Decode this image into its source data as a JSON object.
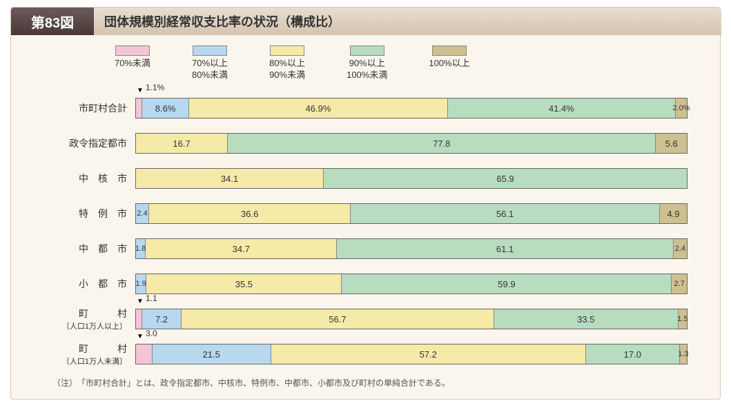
{
  "figure_number": "第83図",
  "title": "団体規模別経常収支比率の状況（構成比）",
  "note": "（注）　「市町村合計」とは、政令指定都市、中核市、特例市、中都市、小都市及び町村の単純合計である。",
  "legend": [
    {
      "label": "70%未満",
      "color": "#f5c5d5"
    },
    {
      "label": "70%以上\n80%未満",
      "color": "#b8d8f0"
    },
    {
      "label": "80%以上\n90%未満",
      "color": "#f5eaa8"
    },
    {
      "label": "90%以上\n100%未満",
      "color": "#b8dcc0"
    },
    {
      "label": "100%以上",
      "color": "#cfc090"
    }
  ],
  "colors": {
    "background": "#faf5ed",
    "border": "#d4c8b0",
    "badge_gradient_top": "#6b5a5a",
    "badge_gradient_bottom": "#4a3838",
    "title_gradient_top": "#e8ddd0",
    "title_gradient_bottom": "#d4c4b0"
  },
  "rows": [
    {
      "label": "市町村合計",
      "sublabel": "",
      "callout": "1.1%",
      "segments": [
        {
          "value": 1.1,
          "text": "",
          "color": "#f5c5d5"
        },
        {
          "value": 8.6,
          "text": "8.6%",
          "color": "#b8d8f0"
        },
        {
          "value": 46.9,
          "text": "46.9%",
          "color": "#f5eaa8"
        },
        {
          "value": 41.4,
          "text": "41.4%",
          "color": "#b8dcc0"
        },
        {
          "value": 2.0,
          "text": "2.0%",
          "color": "#cfc090"
        }
      ]
    },
    {
      "label": "政令指定都市",
      "sublabel": "",
      "segments": [
        {
          "value": 16.7,
          "text": "16.7",
          "color": "#f5eaa8"
        },
        {
          "value": 77.8,
          "text": "77.8",
          "color": "#b8dcc0"
        },
        {
          "value": 5.6,
          "text": "5.6",
          "color": "#cfc090"
        }
      ]
    },
    {
      "label": "中　核　市",
      "sublabel": "",
      "segments": [
        {
          "value": 34.1,
          "text": "34.1",
          "color": "#f5eaa8"
        },
        {
          "value": 65.9,
          "text": "65.9",
          "color": "#b8dcc0"
        }
      ]
    },
    {
      "label": "特　例　市",
      "sublabel": "",
      "segments": [
        {
          "value": 2.4,
          "text": "2.4",
          "color": "#b8d8f0"
        },
        {
          "value": 36.6,
          "text": "36.6",
          "color": "#f5eaa8"
        },
        {
          "value": 56.1,
          "text": "56.1",
          "color": "#b8dcc0"
        },
        {
          "value": 4.9,
          "text": "4.9",
          "color": "#cfc090"
        }
      ]
    },
    {
      "label": "中　都　市",
      "sublabel": "",
      "segments": [
        {
          "value": 1.8,
          "text": "1.8",
          "color": "#b8d8f0"
        },
        {
          "value": 34.7,
          "text": "34.7",
          "color": "#f5eaa8"
        },
        {
          "value": 61.1,
          "text": "61.1",
          "color": "#b8dcc0"
        },
        {
          "value": 2.4,
          "text": "2.4",
          "color": "#cfc090"
        }
      ]
    },
    {
      "label": "小　都　市",
      "sublabel": "",
      "segments": [
        {
          "value": 1.9,
          "text": "1.9",
          "color": "#b8d8f0"
        },
        {
          "value": 35.5,
          "text": "35.5",
          "color": "#f5eaa8"
        },
        {
          "value": 59.9,
          "text": "59.9",
          "color": "#b8dcc0"
        },
        {
          "value": 2.7,
          "text": "2.7",
          "color": "#cfc090"
        }
      ]
    },
    {
      "label": "町　　　村",
      "sublabel": "〔人口1万人以上〕",
      "callout": "1.1",
      "segments": [
        {
          "value": 1.1,
          "text": "",
          "color": "#f5c5d5"
        },
        {
          "value": 7.2,
          "text": "7.2",
          "color": "#b8d8f0"
        },
        {
          "value": 56.7,
          "text": "56.7",
          "color": "#f5eaa8"
        },
        {
          "value": 33.5,
          "text": "33.5",
          "color": "#b8dcc0"
        },
        {
          "value": 1.5,
          "text": "1.5",
          "color": "#cfc090"
        }
      ]
    },
    {
      "label": "町　　　村",
      "sublabel": "〔人口1万人未満〕",
      "callout": "3.0",
      "segments": [
        {
          "value": 3.0,
          "text": "",
          "color": "#f5c5d5"
        },
        {
          "value": 21.5,
          "text": "21.5",
          "color": "#b8d8f0"
        },
        {
          "value": 57.2,
          "text": "57.2",
          "color": "#f5eaa8"
        },
        {
          "value": 17.0,
          "text": "17.0",
          "color": "#b8dcc0"
        },
        {
          "value": 1.3,
          "text": "1.3",
          "color": "#cfc090"
        }
      ]
    }
  ]
}
